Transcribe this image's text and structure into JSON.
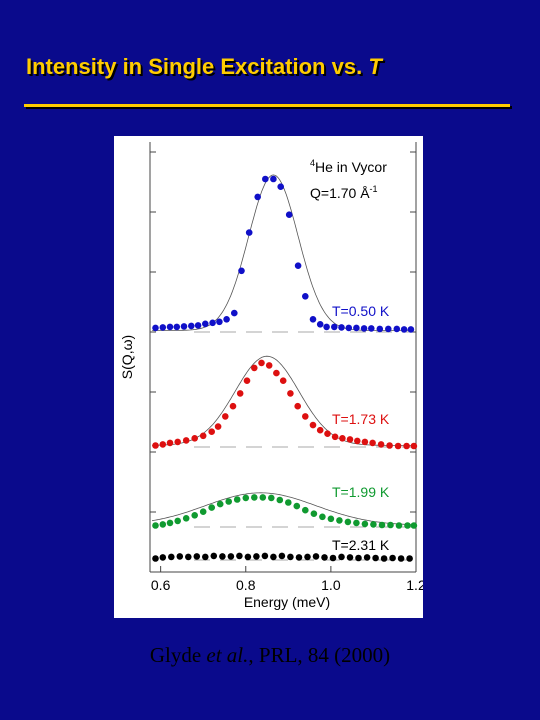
{
  "slide": {
    "title_main": "Intensity in Single Excitation vs. ",
    "title_var": "T",
    "citation_prefix": "Glyde ",
    "citation_etal": "et al.",
    "citation_suffix": ", PRL, 84 (2000)",
    "title_color": "#ffcc00",
    "background_color": "#0a0a8c"
  },
  "chart_data": {
    "type": "scatter",
    "title": "",
    "xlabel": "Energy (meV)",
    "ylabel": "S(Q,ω)",
    "xlim": [
      0.575,
      1.2
    ],
    "xticks": [
      "0.6",
      "0.8",
      "1.0",
      "1.2"
    ],
    "annotation_sample": "He in Vycor",
    "annotation_sample_super": "4",
    "annotation_q": "Q=1.70 Å",
    "annotation_q_super": "-1",
    "series": [
      {
        "name": "T=0.50 K",
        "color": "#1010c8",
        "fit": "peak",
        "baseline": 0,
        "fit_peak": 30.5,
        "fit_center": 0.865,
        "fit_width": 0.058,
        "points": [
          [
            0.588,
            0.8
          ],
          [
            0.605,
            0.9
          ],
          [
            0.622,
            1.0
          ],
          [
            0.638,
            1.0
          ],
          [
            0.655,
            1.1
          ],
          [
            0.672,
            1.2
          ],
          [
            0.688,
            1.3
          ],
          [
            0.705,
            1.6
          ],
          [
            0.722,
            1.8
          ],
          [
            0.738,
            2.0
          ],
          [
            0.755,
            2.5
          ],
          [
            0.773,
            3.7
          ],
          [
            0.79,
            12.0
          ],
          [
            0.808,
            19.5
          ],
          [
            0.828,
            26.5
          ],
          [
            0.846,
            30.0
          ],
          [
            0.865,
            30.0
          ],
          [
            0.882,
            28.5
          ],
          [
            0.902,
            23.0
          ],
          [
            0.923,
            13.0
          ],
          [
            0.94,
            7.0
          ],
          [
            0.958,
            2.5
          ],
          [
            0.975,
            1.5
          ],
          [
            0.99,
            1.0
          ],
          [
            1.008,
            1.0
          ],
          [
            1.025,
            0.9
          ],
          [
            1.042,
            0.8
          ],
          [
            1.06,
            0.8
          ],
          [
            1.078,
            0.7
          ],
          [
            1.095,
            0.7
          ],
          [
            1.115,
            0.6
          ],
          [
            1.135,
            0.6
          ],
          [
            1.155,
            0.6
          ],
          [
            1.172,
            0.5
          ],
          [
            1.188,
            0.5
          ]
        ]
      },
      {
        "name": "T=1.73 K",
        "color": "#dd1010",
        "fit": "peak",
        "baseline": 0,
        "fit_peak": 17.5,
        "fit_center": 0.85,
        "fit_width": 0.075,
        "points": [
          [
            0.588,
            0.3
          ],
          [
            0.605,
            0.5
          ],
          [
            0.622,
            0.8
          ],
          [
            0.64,
            1.0
          ],
          [
            0.66,
            1.3
          ],
          [
            0.68,
            1.7
          ],
          [
            0.7,
            2.2
          ],
          [
            0.72,
            3.0
          ],
          [
            0.735,
            4.0
          ],
          [
            0.752,
            6.0
          ],
          [
            0.77,
            8.0
          ],
          [
            0.787,
            10.5
          ],
          [
            0.803,
            13.0
          ],
          [
            0.82,
            15.5
          ],
          [
            0.837,
            16.5
          ],
          [
            0.855,
            16.0
          ],
          [
            0.872,
            14.5
          ],
          [
            0.888,
            13.0
          ],
          [
            0.905,
            10.5
          ],
          [
            0.922,
            8.0
          ],
          [
            0.94,
            6.0
          ],
          [
            0.958,
            4.3
          ],
          [
            0.975,
            3.3
          ],
          [
            0.992,
            2.6
          ],
          [
            1.01,
            2.0
          ],
          [
            1.027,
            1.7
          ],
          [
            1.045,
            1.5
          ],
          [
            1.062,
            1.2
          ],
          [
            1.08,
            1.0
          ],
          [
            1.098,
            0.8
          ],
          [
            1.118,
            0.5
          ],
          [
            1.138,
            0.3
          ],
          [
            1.158,
            0.2
          ],
          [
            1.178,
            0.2
          ],
          [
            1.195,
            0.2
          ]
        ]
      },
      {
        "name": "T=1.99 K",
        "color": "#109a30",
        "fit": "peak",
        "baseline": 0,
        "fit_peak": 6.4,
        "fit_center": 0.835,
        "fit_width": 0.13,
        "points": [
          [
            0.588,
            0.3
          ],
          [
            0.605,
            0.5
          ],
          [
            0.622,
            0.8
          ],
          [
            0.64,
            1.2
          ],
          [
            0.66,
            1.7
          ],
          [
            0.68,
            2.3
          ],
          [
            0.7,
            3.0
          ],
          [
            0.72,
            3.8
          ],
          [
            0.74,
            4.5
          ],
          [
            0.76,
            5.0
          ],
          [
            0.78,
            5.4
          ],
          [
            0.8,
            5.7
          ],
          [
            0.82,
            5.8
          ],
          [
            0.84,
            5.8
          ],
          [
            0.86,
            5.7
          ],
          [
            0.88,
            5.3
          ],
          [
            0.9,
            4.8
          ],
          [
            0.92,
            4.1
          ],
          [
            0.94,
            3.3
          ],
          [
            0.96,
            2.6
          ],
          [
            0.98,
            2.0
          ],
          [
            1.0,
            1.6
          ],
          [
            1.02,
            1.3
          ],
          [
            1.04,
            1.0
          ],
          [
            1.06,
            0.8
          ],
          [
            1.08,
            0.6
          ],
          [
            1.1,
            0.5
          ],
          [
            1.12,
            0.4
          ],
          [
            1.14,
            0.4
          ],
          [
            1.16,
            0.3
          ],
          [
            1.18,
            0.3
          ],
          [
            1.195,
            0.3
          ]
        ]
      },
      {
        "name": "T=2.31 K",
        "color": "#000000",
        "fit": "none",
        "baseline": 0,
        "points": [
          [
            0.588,
            0.3
          ],
          [
            0.605,
            0.5
          ],
          [
            0.625,
            0.6
          ],
          [
            0.645,
            0.7
          ],
          [
            0.665,
            0.6
          ],
          [
            0.685,
            0.7
          ],
          [
            0.705,
            0.6
          ],
          [
            0.725,
            0.8
          ],
          [
            0.745,
            0.7
          ],
          [
            0.765,
            0.7
          ],
          [
            0.785,
            0.8
          ],
          [
            0.805,
            0.6
          ],
          [
            0.825,
            0.7
          ],
          [
            0.845,
            0.8
          ],
          [
            0.865,
            0.6
          ],
          [
            0.885,
            0.8
          ],
          [
            0.905,
            0.6
          ],
          [
            0.925,
            0.5
          ],
          [
            0.945,
            0.6
          ],
          [
            0.965,
            0.7
          ],
          [
            0.985,
            0.5
          ],
          [
            1.005,
            0.4
          ],
          [
            1.025,
            0.6
          ],
          [
            1.045,
            0.5
          ],
          [
            1.065,
            0.4
          ],
          [
            1.085,
            0.5
          ],
          [
            1.105,
            0.4
          ],
          [
            1.125,
            0.3
          ],
          [
            1.145,
            0.4
          ],
          [
            1.165,
            0.3
          ],
          [
            1.185,
            0.3
          ]
        ]
      }
    ]
  }
}
